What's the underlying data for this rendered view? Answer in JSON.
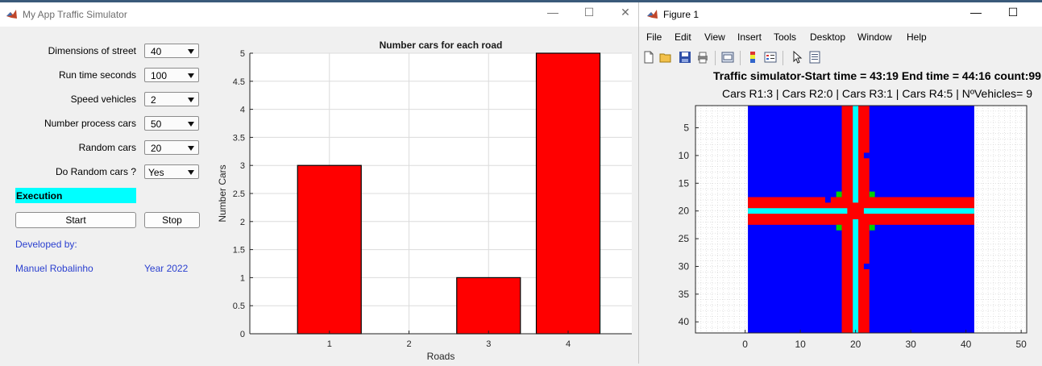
{
  "app": {
    "title": "My App Traffic Simulator",
    "window_controls": {
      "minimize": "—",
      "maximize": "☐",
      "close": "✕"
    },
    "fields": [
      {
        "label": "Dimensions of street",
        "value": "40"
      },
      {
        "label": "Run time seconds",
        "value": "100"
      },
      {
        "label": "Speed vehicles",
        "value": "2"
      },
      {
        "label": "Number process cars",
        "value": "50"
      },
      {
        "label": "Random cars",
        "value": "20"
      },
      {
        "label": "Do Random cars ?",
        "value": "Yes"
      }
    ],
    "status": {
      "label": "Execution",
      "color": "#00ffff"
    },
    "buttons": {
      "start": "Start",
      "stop": "Stop"
    },
    "developed_by_label": "Developed by:",
    "author": "Manuel Robalinho",
    "year": "Year 2022"
  },
  "chart_data": {
    "type": "bar",
    "title": "Number cars for each road",
    "xlabel": "Roads",
    "ylabel": "Number Cars",
    "categories": [
      "1",
      "2",
      "3",
      "4"
    ],
    "values": [
      3,
      0,
      1,
      5
    ],
    "ylim": [
      0,
      5
    ],
    "yticks": [
      "0",
      "0.5",
      "1",
      "1.5",
      "2",
      "2.5",
      "3",
      "3.5",
      "4",
      "4.5",
      "5"
    ],
    "bar_color": "#ff0000",
    "grid": true
  },
  "figure": {
    "title": "Figure 1",
    "window_controls": {
      "minimize": "—",
      "maximize": "☐"
    },
    "menu": [
      "File",
      "Edit",
      "View",
      "Insert",
      "Tools",
      "Desktop",
      "Window",
      "Help"
    ],
    "toolbar_icons": [
      "new-figure-icon",
      "open-folder-icon",
      "save-icon",
      "print-icon",
      "link-plot-icon",
      "insert-colorbar-icon",
      "insert-legend-icon",
      "pointer-icon",
      "property-inspector-icon"
    ],
    "title_line1": "Traffic simulator-Start time = 43:19 End time = 44:16 count:99",
    "title_line2": "Cars R1:3 |  Cars R2:0 |  Cars R3:1 | Cars R4:5 | NºVehicles= 9",
    "xticks": [
      "0",
      "10",
      "20",
      "30",
      "40",
      "50"
    ],
    "yticks": [
      "5",
      "10",
      "15",
      "20",
      "25",
      "30",
      "35",
      "40"
    ],
    "colors": {
      "background": "#0000ff",
      "road": "#ff0000",
      "lane": "#00ffff",
      "marker": "#00d000"
    }
  }
}
